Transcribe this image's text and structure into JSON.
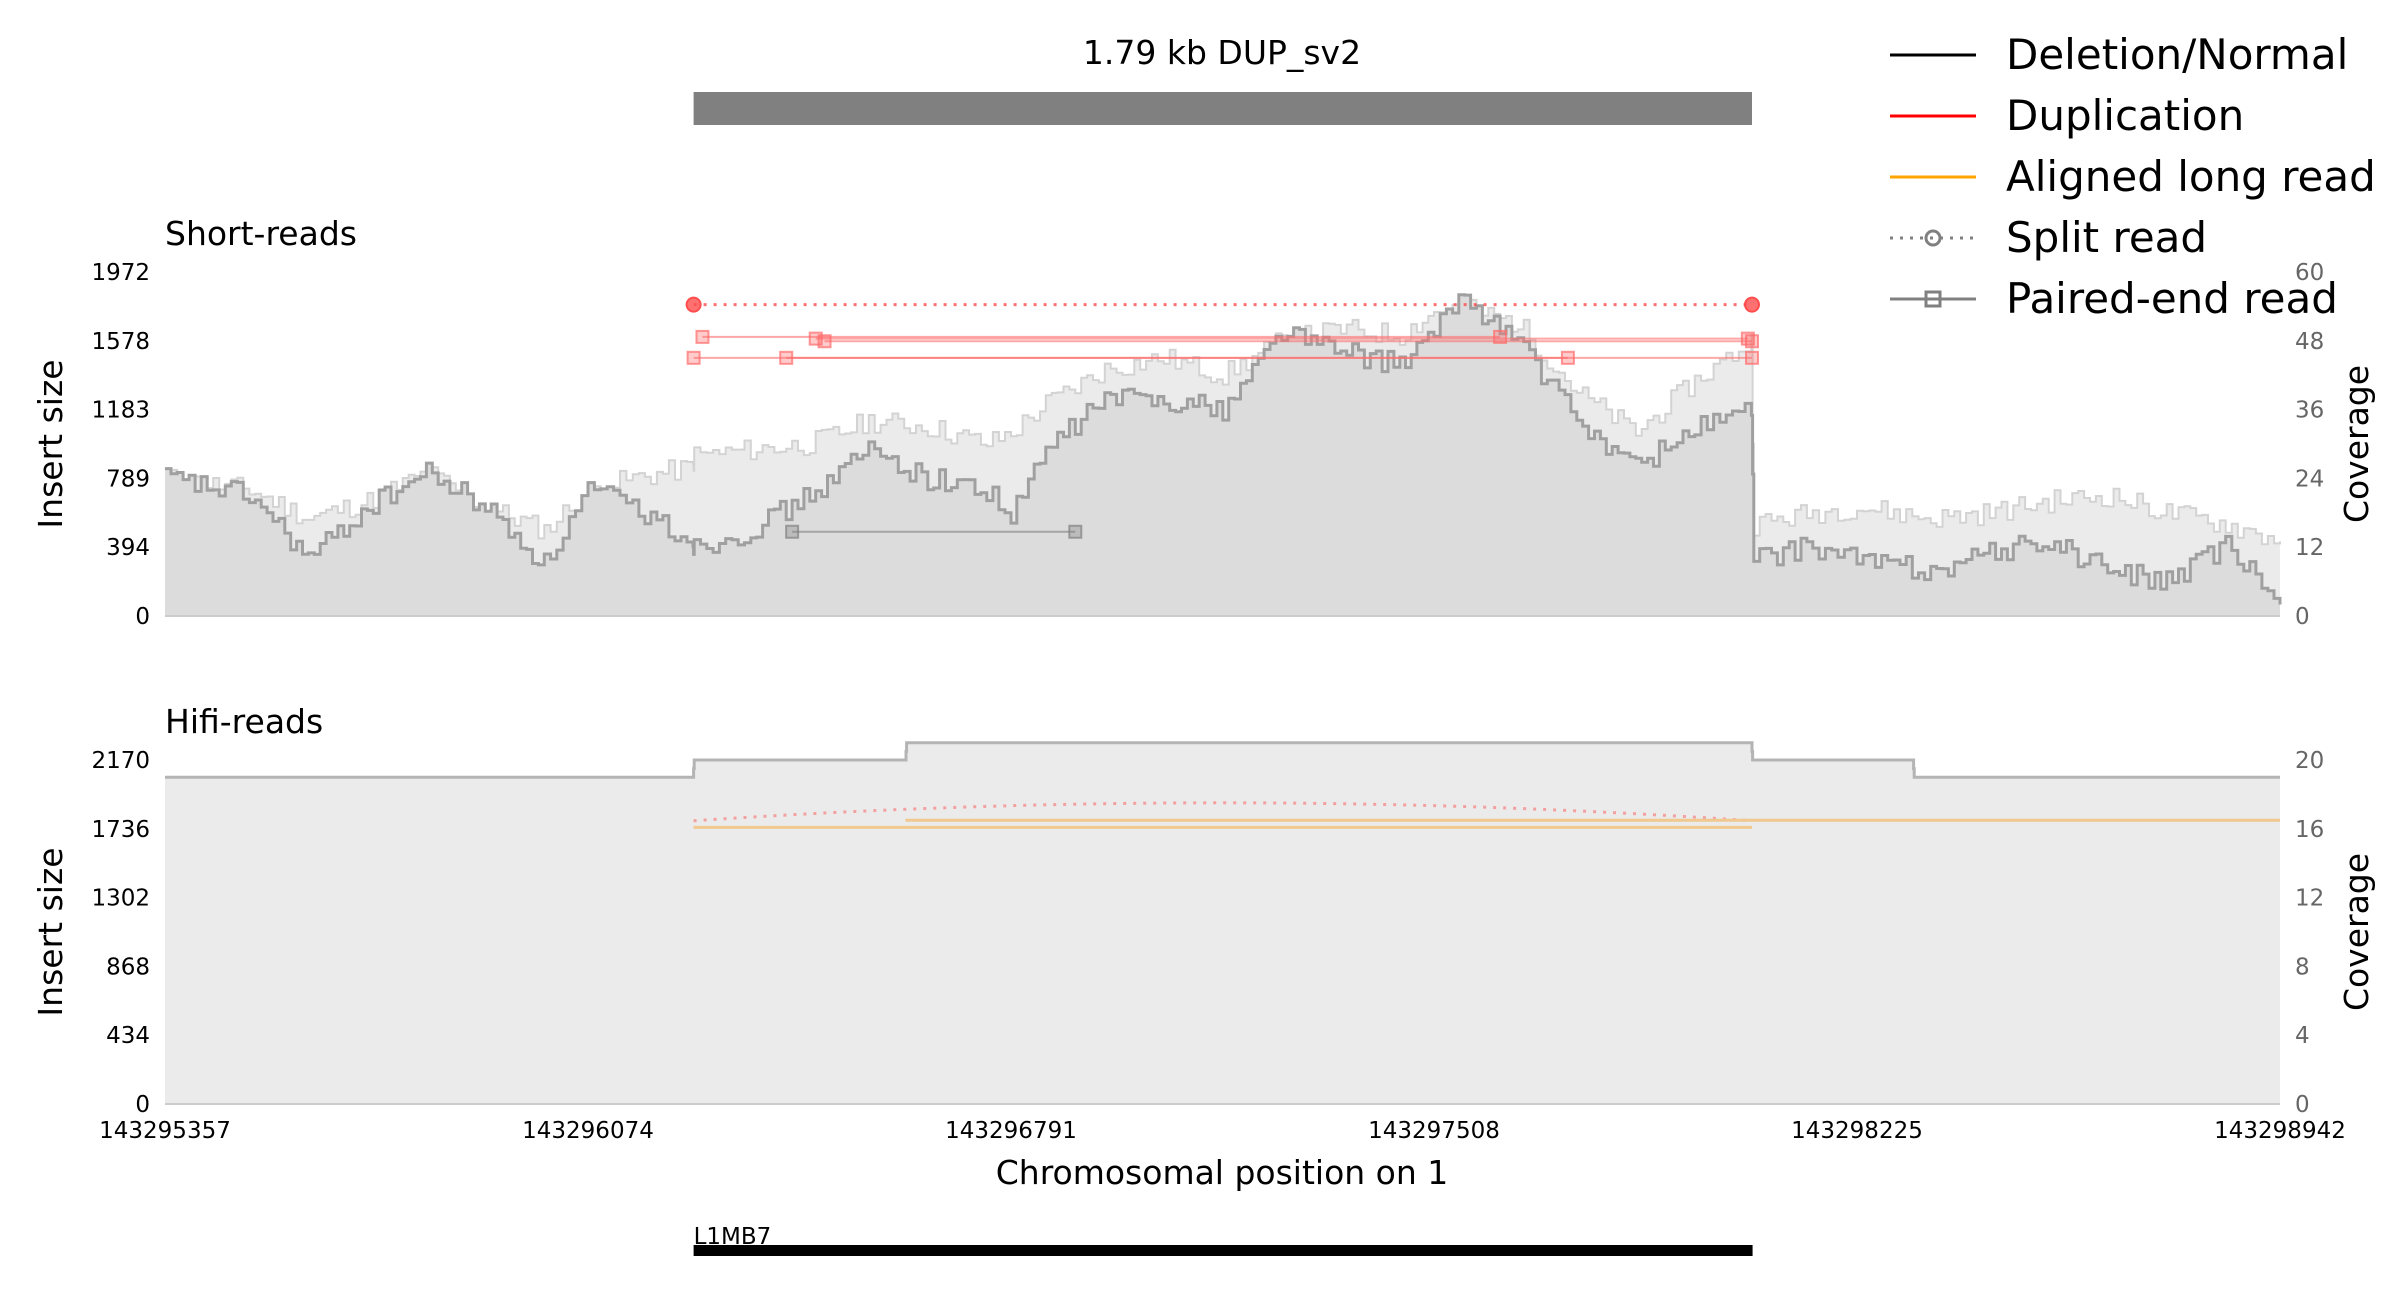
{
  "chart_data": {
    "type": "area",
    "title": "1.79 kb DUP_sv2",
    "xlabel": "Chromosomal position on 1",
    "xlim": [
      143295357,
      143298942
    ],
    "xticks": [
      "143295357",
      "143296074",
      "143296791",
      "143297508",
      "143298225",
      "143298942"
    ],
    "sv_span": [
      143296253,
      143298047
    ],
    "legend_position": "top-right",
    "legend": [
      {
        "label": "Deletion/Normal",
        "color": "#000000",
        "style": "solid"
      },
      {
        "label": "Duplication",
        "color": "#ff0000",
        "style": "solid"
      },
      {
        "label": "Aligned long read",
        "color": "#ffa500",
        "style": "solid"
      },
      {
        "label": "Split read",
        "color": "#808080",
        "style": "dotted-circle"
      },
      {
        "label": "Paired-end read",
        "color": "#808080",
        "style": "solid-square"
      }
    ],
    "short_reads": {
      "title": "Short-reads",
      "ylabel": "Insert size",
      "ylabel_right": "Coverage",
      "y_ticks": [
        "0",
        "394",
        "789",
        "1183",
        "1578",
        "1972"
      ],
      "ylim": [
        0,
        1972
      ],
      "y2_ticks": [
        "0",
        "12",
        "24",
        "36",
        "48",
        "60"
      ],
      "y2lim": [
        0,
        60
      ],
      "coverage_x": [
        143295357,
        143295500,
        143295600,
        143295700,
        143295800,
        143295900,
        143296000,
        143296074,
        143296150,
        143296252,
        143296254,
        143296350,
        143296450,
        143296550,
        143296650,
        143296750,
        143296791,
        143296850,
        143296950,
        143297050,
        143297150,
        143297250,
        143297350,
        143297450,
        143297508,
        143297550,
        143297650,
        143297750,
        143297850,
        143297950,
        143298046,
        143298050,
        143298150,
        143298225,
        143298350,
        143298450,
        143298550,
        143298650,
        143298750,
        143298850,
        143298942
      ],
      "coverage_mean": [
        24,
        22,
        17,
        20,
        25,
        19,
        15,
        22,
        24,
        26,
        28,
        29,
        30,
        34,
        33,
        30,
        32,
        37,
        43,
        45,
        42,
        48,
        50,
        49,
        53,
        54,
        51,
        39,
        32,
        41,
        48,
        16,
        18,
        19,
        17,
        18,
        20,
        21,
        18,
        16,
        13
      ],
      "coverage_low": [
        24,
        21,
        10,
        19,
        25,
        19,
        9,
        22,
        19,
        13,
        12,
        15,
        21,
        29,
        24,
        22,
        17,
        29,
        38,
        38,
        36,
        50,
        46,
        44,
        49,
        56,
        48,
        34,
        26,
        33,
        36,
        10,
        12,
        10,
        8,
        11,
        13,
        8,
        6,
        12,
        2
      ],
      "split_reads": [
        {
          "start": 143296253,
          "end": 143298047,
          "insert_size": 1785,
          "type": "Duplication"
        }
      ],
      "paired_end_reads": [
        {
          "start": 143296253,
          "end": 143298047,
          "insert_size": 1480,
          "type": "Duplication"
        },
        {
          "start": 143296268,
          "end": 143297620,
          "insert_size": 1600,
          "type": "Duplication"
        },
        {
          "start": 143296460,
          "end": 143298040,
          "insert_size": 1590,
          "type": "Duplication"
        },
        {
          "start": 143296475,
          "end": 143298047,
          "insert_size": 1575,
          "type": "Duplication"
        },
        {
          "start": 143296410,
          "end": 143297735,
          "insert_size": 1480,
          "type": "Duplication"
        },
        {
          "start": 143296420,
          "end": 143296900,
          "insert_size": 483,
          "type": "Deletion/Normal"
        }
      ]
    },
    "hifi_reads": {
      "title": "Hifi-reads",
      "ylabel": "Insert size",
      "ylabel_right": "Coverage",
      "y_ticks": [
        "0",
        "434",
        "868",
        "1302",
        "1736",
        "2170"
      ],
      "ylim": [
        0,
        2170
      ],
      "y2_ticks": [
        "0",
        "4",
        "8",
        "12",
        "16",
        "20"
      ],
      "y2lim": [
        0,
        20
      ],
      "coverage_x": [
        143295357,
        143296252,
        143296254,
        143296612,
        143296614,
        143298046,
        143298048,
        143298320,
        143298322,
        143298942
      ],
      "coverage_mean": [
        19,
        19,
        20,
        20,
        21,
        21,
        20,
        20,
        19,
        19
      ],
      "split_reads": [
        {
          "start": 143296253,
          "end": 143298047,
          "insert_size": 1900,
          "type": "Duplication"
        }
      ],
      "aligned_long_reads": [
        {
          "start": 143296253,
          "end": 143298047,
          "insert_size": 1745,
          "type": "Aligned long read"
        },
        {
          "start": 143296612,
          "end": 143298942,
          "insert_size": 1790,
          "type": "Aligned long read"
        }
      ]
    },
    "gene_track": {
      "name": "L1MB7",
      "start": 143296253,
      "end": 143298048
    }
  }
}
